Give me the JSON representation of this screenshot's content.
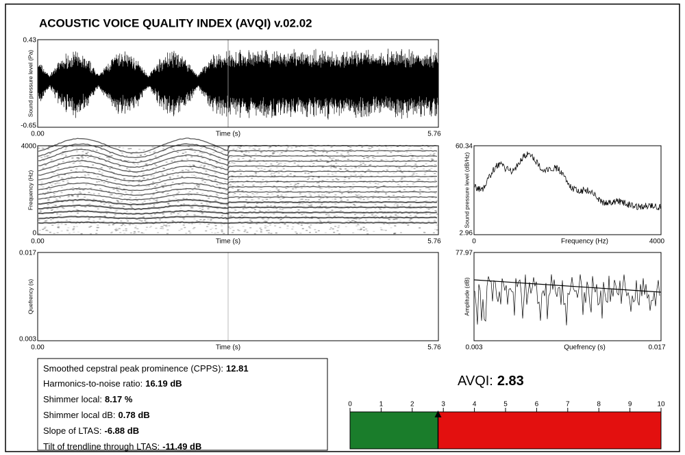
{
  "title": "ACOUSTIC VOICE QUALITY INDEX (AVQI) v.02.02",
  "panels": [
    {
      "y_label": "Sound pressure level (Pa)",
      "y_top": "0.43",
      "y_bottom": "-0.65",
      "x_left": "0.00",
      "x_label": "Time (s)",
      "x_right": "5.76"
    },
    {
      "y_label": "Frequency (Hz)",
      "y_top": "4000",
      "y_bottom": "0",
      "x_left": "0.00",
      "x_label": "Time (s)",
      "x_right": "5.76"
    },
    {
      "y_label": "Sound pressure level (dB/Hz)",
      "y_top": "60.34",
      "y_bottom": "2.96",
      "x_left": "0",
      "x_label": "Frequency (Hz)",
      "x_right": "4000"
    },
    {
      "y_label": "Quefrency (s)",
      "y_top": "0.017",
      "y_bottom": "0.003",
      "x_left": "0.00",
      "x_label": "Time (s)",
      "x_right": "5.76"
    },
    {
      "y_label": "Amplitude (dB)",
      "y_top": "77.97",
      "x_left": "0.003",
      "x_label": "Quefrency (s)",
      "x_right": "0.017"
    }
  ],
  "measures": [
    {
      "label": "Smoothed cepstral peak prominence (CPPS):",
      "value": "12.81"
    },
    {
      "label": "Harmonics-to-noise ratio:",
      "value": "16.19 dB"
    },
    {
      "label": "Shimmer local:",
      "value": "8.17 %"
    },
    {
      "label": "Shimmer local dB:",
      "value": "0.78 dB"
    },
    {
      "label": "Slope of LTAS:",
      "value": "-6.88 dB"
    },
    {
      "label": "Tilt of trendline through LTAS:",
      "value": "-11.49 dB"
    }
  ],
  "avqi": {
    "label": "AVQI:",
    "value": 2.83
  },
  "scale": {
    "lim": [
      0,
      10
    ],
    "ticks": [
      0,
      1,
      2,
      3,
      4,
      5,
      6,
      7,
      8,
      9,
      10
    ],
    "low_color": "#1a7d2b",
    "high_color": "#e3100f"
  }
}
